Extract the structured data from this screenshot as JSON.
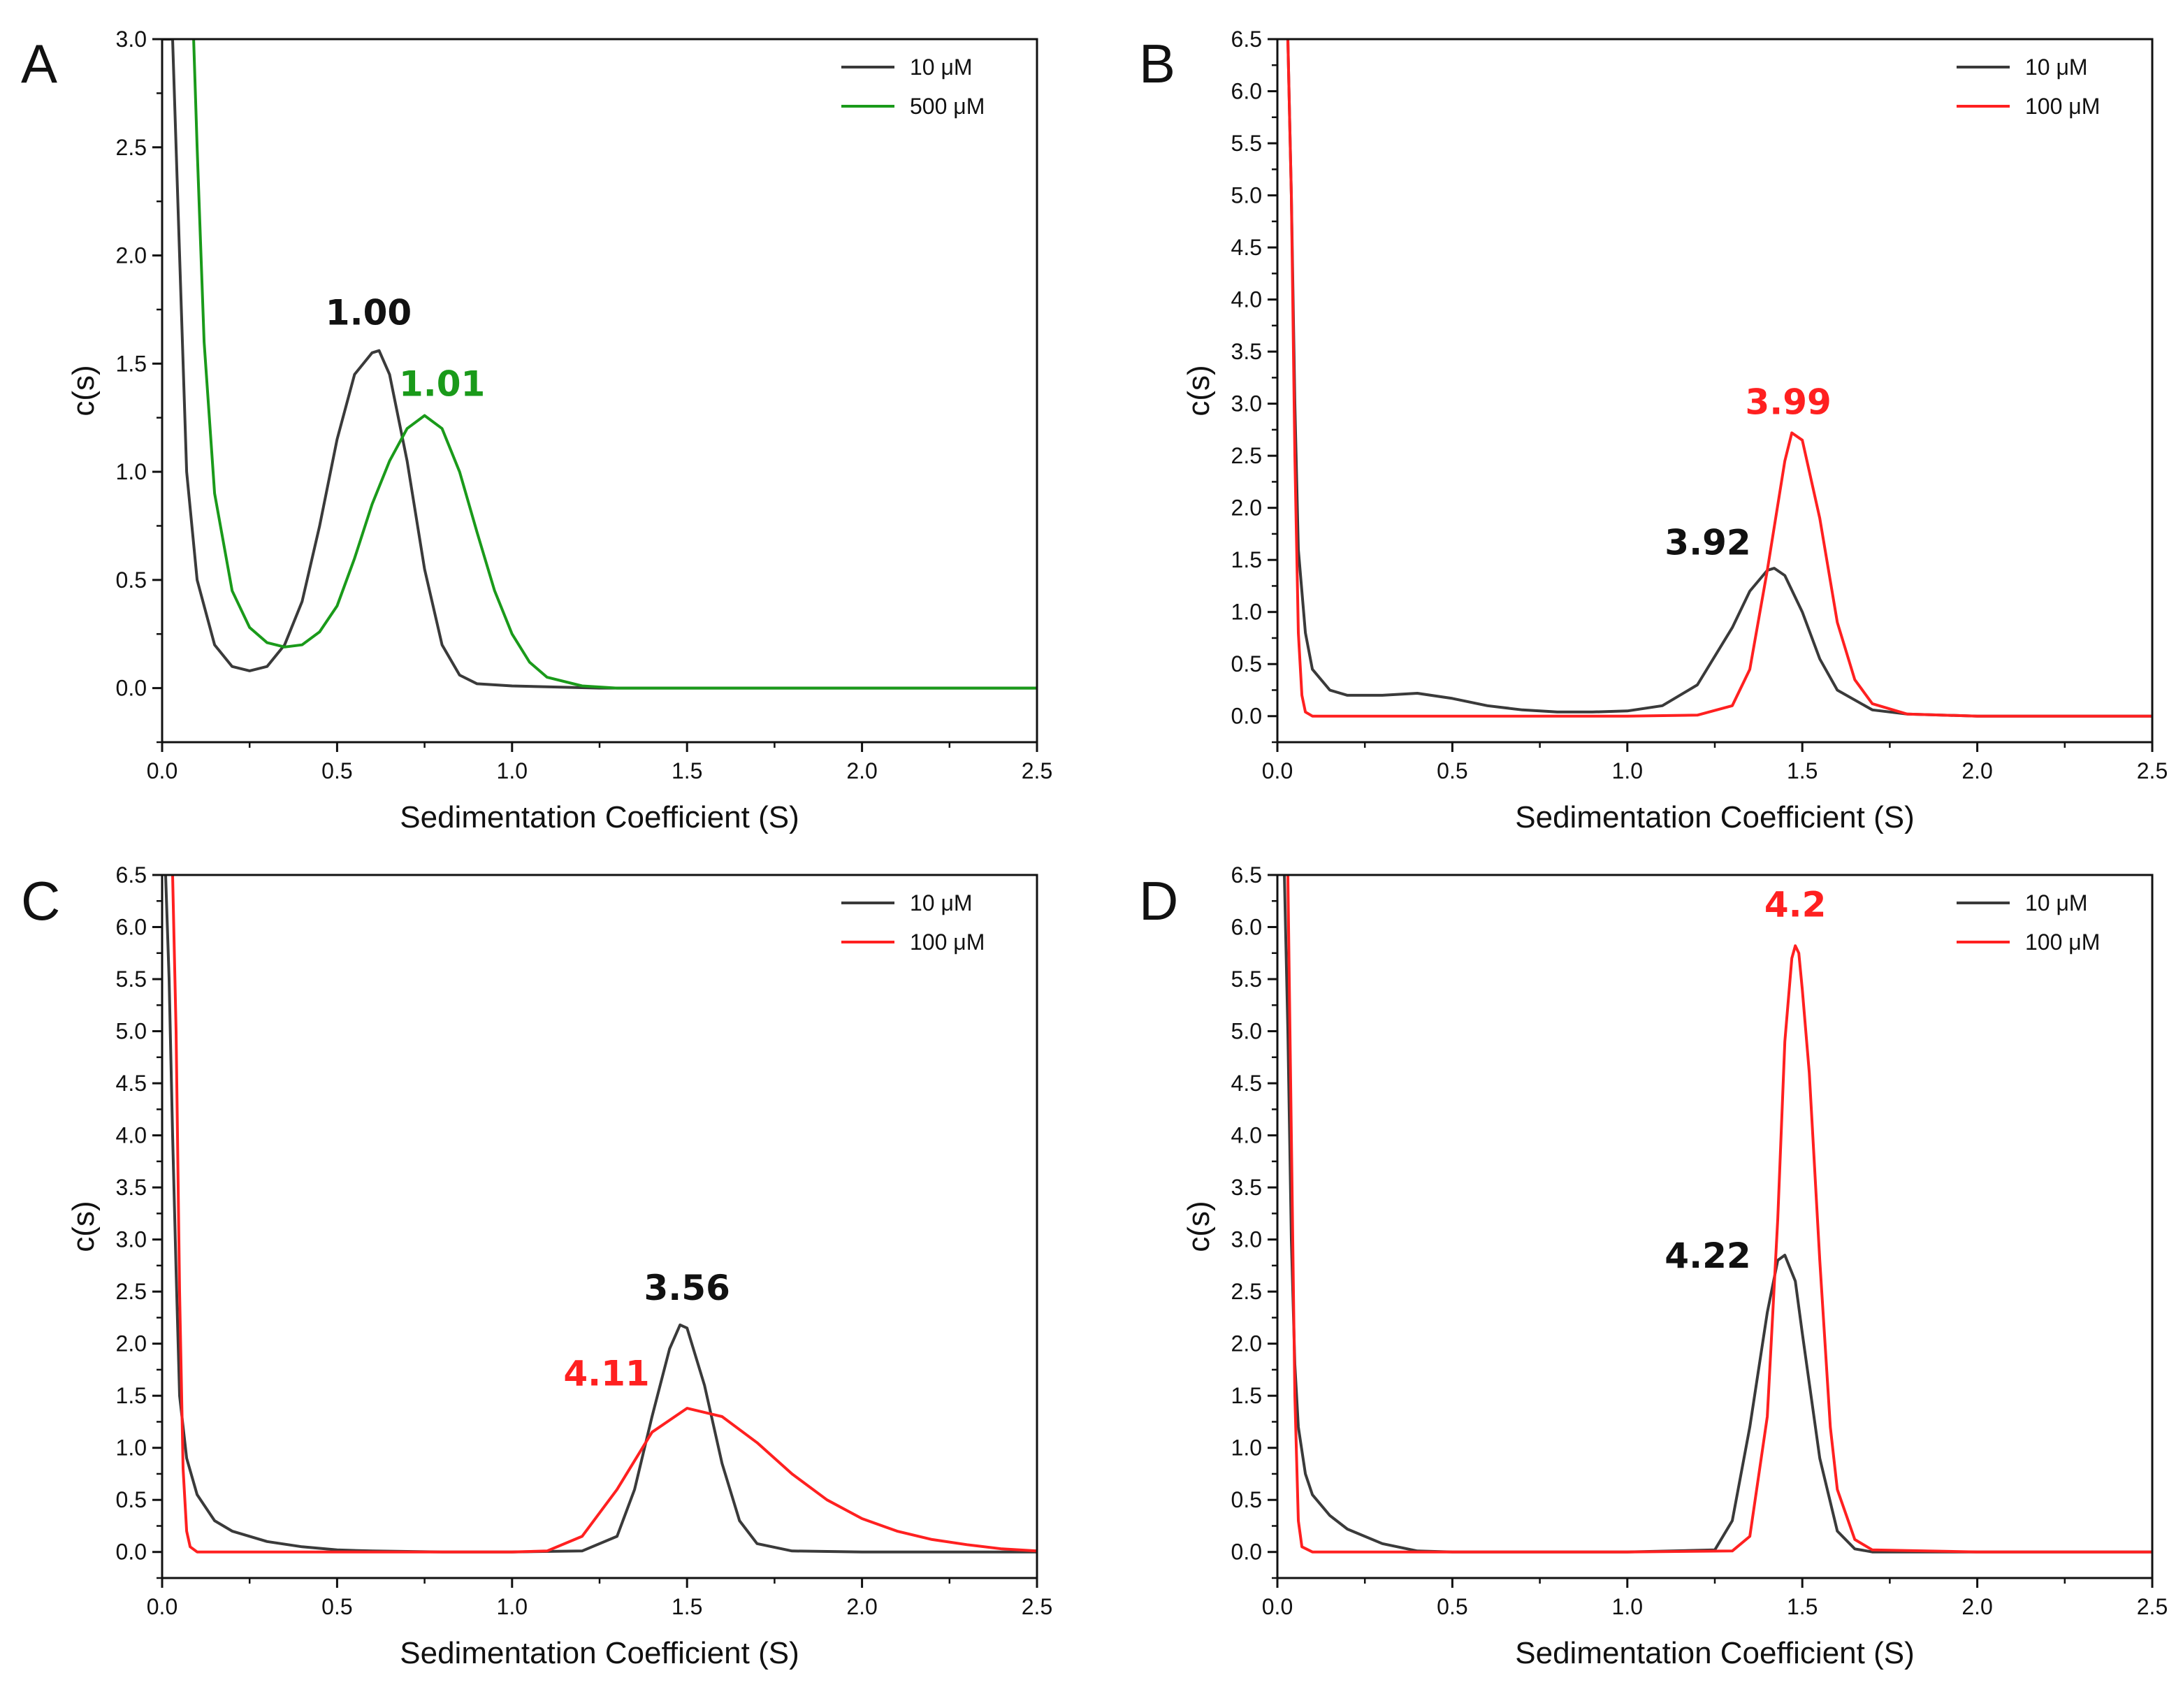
{
  "chart_data": [
    {
      "panel": "A",
      "type": "line",
      "xlabel": "Sedimentation Coefficient (S)",
      "ylabel": "c(s)",
      "xlim": [
        0,
        2.5
      ],
      "ylim": [
        -0.25,
        3.0
      ],
      "xticks": [
        "0.0",
        "0.5",
        "1.0",
        "1.5",
        "2.0",
        "2.5"
      ],
      "yticks": [
        "0.0",
        "0.5",
        "1.0",
        "1.5",
        "2.0",
        "2.5",
        "3.0"
      ],
      "legend_position": "top-right",
      "series": [
        {
          "name": "10 μM",
          "color": "#3a3a3a",
          "x": [
            0,
            0.03,
            0.05,
            0.07,
            0.1,
            0.15,
            0.2,
            0.25,
            0.3,
            0.35,
            0.4,
            0.45,
            0.5,
            0.55,
            0.6,
            0.62,
            0.65,
            0.7,
            0.75,
            0.8,
            0.85,
            0.9,
            1.0,
            1.25,
            1.5,
            2.0,
            2.5
          ],
          "y": [
            3.0,
            3.0,
            2.0,
            1.0,
            0.5,
            0.2,
            0.1,
            0.08,
            0.1,
            0.2,
            0.4,
            0.75,
            1.15,
            1.45,
            1.55,
            1.56,
            1.45,
            1.05,
            0.55,
            0.2,
            0.06,
            0.02,
            0.01,
            0.0,
            0.0,
            0.0,
            0.0
          ]
        },
        {
          "name": "500 μM",
          "color": "#1a9a1a",
          "x": [
            0.09,
            0.1,
            0.12,
            0.15,
            0.2,
            0.25,
            0.3,
            0.35,
            0.4,
            0.45,
            0.5,
            0.55,
            0.6,
            0.65,
            0.7,
            0.75,
            0.8,
            0.85,
            0.9,
            0.95,
            1.0,
            1.05,
            1.1,
            1.2,
            1.3,
            1.5,
            2.0,
            2.5
          ],
          "y": [
            3.0,
            2.5,
            1.6,
            0.9,
            0.45,
            0.28,
            0.21,
            0.19,
            0.2,
            0.26,
            0.38,
            0.6,
            0.85,
            1.05,
            1.2,
            1.26,
            1.2,
            1.0,
            0.72,
            0.45,
            0.25,
            0.12,
            0.05,
            0.01,
            0.0,
            0.0,
            0.0,
            0.0
          ]
        }
      ],
      "annotations": [
        {
          "text": "1.00",
          "color": "#111111",
          "x": 0.59,
          "y": 1.68
        },
        {
          "text": "1.01",
          "color": "#1a9a1a",
          "x": 0.8,
          "y": 1.35
        }
      ]
    },
    {
      "panel": "B",
      "type": "line",
      "xlabel": "Sedimentation Coefficient (S)",
      "ylabel": "c(s)",
      "xlim": [
        0,
        2.5
      ],
      "ylim": [
        -0.25,
        6.5
      ],
      "xticks": [
        "0.0",
        "0.5",
        "1.0",
        "1.5",
        "2.0",
        "2.5"
      ],
      "yticks": [
        "0.0",
        "0.5",
        "1.0",
        "1.5",
        "2.0",
        "2.5",
        "3.0",
        "3.5",
        "4.0",
        "4.5",
        "5.0",
        "5.5",
        "6.0",
        "6.5"
      ],
      "legend_position": "top-right",
      "series": [
        {
          "name": "10 μM",
          "color": "#3a3a3a",
          "x": [
            0.03,
            0.04,
            0.05,
            0.06,
            0.08,
            0.1,
            0.15,
            0.2,
            0.3,
            0.4,
            0.5,
            0.6,
            0.7,
            0.8,
            0.9,
            1.0,
            1.1,
            1.2,
            1.3,
            1.35,
            1.4,
            1.42,
            1.45,
            1.5,
            1.55,
            1.6,
            1.7,
            1.8,
            2.0,
            2.5
          ],
          "y": [
            6.5,
            5.0,
            3.0,
            1.6,
            0.8,
            0.45,
            0.25,
            0.2,
            0.2,
            0.22,
            0.17,
            0.1,
            0.06,
            0.04,
            0.04,
            0.05,
            0.1,
            0.3,
            0.85,
            1.2,
            1.4,
            1.42,
            1.35,
            1.0,
            0.55,
            0.25,
            0.06,
            0.02,
            0.0,
            0.0
          ]
        },
        {
          "name": "100 μM",
          "color": "#ff2020",
          "x": [
            0.03,
            0.04,
            0.05,
            0.06,
            0.07,
            0.08,
            0.1,
            0.2,
            0.5,
            1.0,
            1.2,
            1.3,
            1.35,
            1.4,
            1.45,
            1.47,
            1.5,
            1.55,
            1.6,
            1.65,
            1.7,
            1.8,
            2.0,
            2.5
          ],
          "y": [
            6.5,
            5.0,
            2.5,
            0.8,
            0.2,
            0.04,
            0.0,
            0.0,
            0.0,
            0.0,
            0.01,
            0.1,
            0.45,
            1.4,
            2.45,
            2.72,
            2.65,
            1.9,
            0.9,
            0.35,
            0.12,
            0.02,
            0.0,
            0.0
          ]
        }
      ],
      "annotations": [
        {
          "text": "3.99",
          "color": "#ff2020",
          "x": 1.46,
          "y": 2.9
        },
        {
          "text": "3.92",
          "color": "#111111",
          "x": 1.23,
          "y": 1.55
        }
      ]
    },
    {
      "panel": "C",
      "type": "line",
      "xlabel": "Sedimentation Coefficient (S)",
      "ylabel": "c(s)",
      "xlim": [
        0,
        2.5
      ],
      "ylim": [
        -0.25,
        6.5
      ],
      "xticks": [
        "0.0",
        "0.5",
        "1.0",
        "1.5",
        "2.0",
        "2.5"
      ],
      "yticks": [
        "0.0",
        "0.5",
        "1.0",
        "1.5",
        "2.0",
        "2.5",
        "3.0",
        "3.5",
        "4.0",
        "4.5",
        "5.0",
        "5.5",
        "6.0",
        "6.5"
      ],
      "legend_position": "top-right",
      "series": [
        {
          "name": "10 μM",
          "color": "#3a3a3a",
          "x": [
            0.01,
            0.02,
            0.03,
            0.04,
            0.05,
            0.07,
            0.1,
            0.15,
            0.2,
            0.3,
            0.4,
            0.5,
            0.6,
            0.8,
            1.0,
            1.2,
            1.3,
            1.35,
            1.4,
            1.45,
            1.48,
            1.5,
            1.55,
            1.6,
            1.65,
            1.7,
            1.8,
            2.0,
            2.5
          ],
          "y": [
            6.5,
            5.5,
            4.0,
            2.7,
            1.5,
            0.9,
            0.55,
            0.3,
            0.2,
            0.1,
            0.05,
            0.02,
            0.01,
            0.0,
            0.0,
            0.01,
            0.15,
            0.6,
            1.3,
            1.95,
            2.18,
            2.15,
            1.6,
            0.85,
            0.3,
            0.08,
            0.01,
            0.0,
            0.0
          ]
        },
        {
          "name": "100 μM",
          "color": "#ff2020",
          "x": [
            0.03,
            0.04,
            0.05,
            0.06,
            0.07,
            0.08,
            0.1,
            0.2,
            0.5,
            1.0,
            1.1,
            1.2,
            1.3,
            1.4,
            1.5,
            1.6,
            1.7,
            1.8,
            1.9,
            2.0,
            2.1,
            2.2,
            2.3,
            2.4,
            2.5
          ],
          "y": [
            6.5,
            5.0,
            2.5,
            0.8,
            0.2,
            0.05,
            0.0,
            0.0,
            0.0,
            0.0,
            0.01,
            0.15,
            0.6,
            1.15,
            1.38,
            1.3,
            1.05,
            0.75,
            0.5,
            0.32,
            0.2,
            0.12,
            0.07,
            0.03,
            0.01
          ]
        }
      ],
      "annotations": [
        {
          "text": "3.56",
          "color": "#111111",
          "x": 1.5,
          "y": 2.42
        },
        {
          "text": "4.11",
          "color": "#ff2020",
          "x": 1.27,
          "y": 1.6
        }
      ]
    },
    {
      "panel": "D",
      "type": "line",
      "xlabel": "Sedimentation Coefficient (S)",
      "ylabel": "c(s)",
      "xlim": [
        0,
        2.5
      ],
      "ylim": [
        -0.25,
        6.5
      ],
      "xticks": [
        "0.0",
        "0.5",
        "1.0",
        "1.5",
        "2.0",
        "2.5"
      ],
      "yticks": [
        "0.0",
        "0.5",
        "1.0",
        "1.5",
        "2.0",
        "2.5",
        "3.0",
        "3.5",
        "4.0",
        "4.5",
        "5.0",
        "5.5",
        "6.0",
        "6.5"
      ],
      "legend_position": "top-right",
      "series": [
        {
          "name": "10 μM",
          "color": "#3a3a3a",
          "x": [
            0.02,
            0.03,
            0.04,
            0.05,
            0.06,
            0.08,
            0.1,
            0.15,
            0.2,
            0.3,
            0.4,
            0.5,
            1.0,
            1.25,
            1.3,
            1.35,
            1.4,
            1.43,
            1.45,
            1.48,
            1.5,
            1.55,
            1.6,
            1.65,
            1.7,
            2.0,
            2.5
          ],
          "y": [
            6.5,
            5.0,
            3.0,
            1.8,
            1.2,
            0.75,
            0.55,
            0.35,
            0.22,
            0.08,
            0.01,
            0.0,
            0.0,
            0.02,
            0.3,
            1.2,
            2.3,
            2.8,
            2.85,
            2.6,
            2.1,
            0.9,
            0.2,
            0.03,
            0.0,
            0.0,
            0.0
          ]
        },
        {
          "name": "100 μM",
          "color": "#ff2020",
          "x": [
            0.03,
            0.04,
            0.05,
            0.06,
            0.07,
            0.1,
            0.5,
            1.0,
            1.3,
            1.35,
            1.4,
            1.43,
            1.45,
            1.47,
            1.48,
            1.49,
            1.5,
            1.52,
            1.55,
            1.58,
            1.6,
            1.65,
            1.7,
            2.0,
            2.5
          ],
          "y": [
            6.5,
            4.0,
            1.5,
            0.3,
            0.05,
            0.0,
            0.0,
            0.0,
            0.01,
            0.15,
            1.3,
            3.2,
            4.9,
            5.7,
            5.82,
            5.75,
            5.4,
            4.6,
            2.8,
            1.2,
            0.6,
            0.12,
            0.02,
            0.0,
            0.0
          ]
        }
      ],
      "annotations": [
        {
          "text": "4.2",
          "color": "#ff2020",
          "x": 1.48,
          "y": 6.1
        },
        {
          "text": "4.22",
          "color": "#111111",
          "x": 1.23,
          "y": 2.73
        }
      ]
    }
  ]
}
